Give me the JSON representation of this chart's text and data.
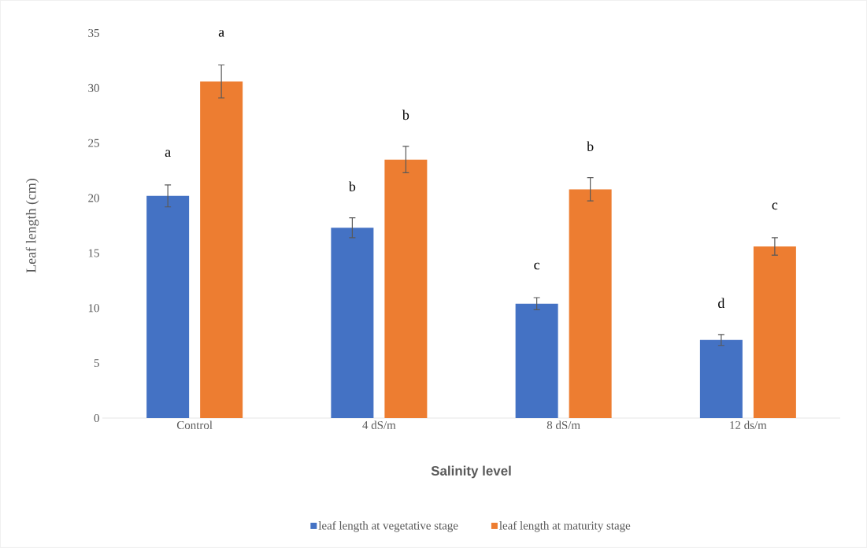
{
  "chart_data": {
    "type": "bar",
    "xlabel": "Salinity level",
    "ylabel": "Leaf length (cm)",
    "categories": [
      "Control",
      "4 dS/m",
      "8 dS/m",
      "12 ds/m"
    ],
    "series": [
      {
        "name": "leaf length at vegetative stage",
        "color": "#4472c4",
        "values": [
          20.2,
          17.3,
          10.4,
          7.1
        ],
        "errors": [
          1.0,
          0.9,
          0.55,
          0.5
        ]
      },
      {
        "name": "leaf length at maturity stage",
        "color": "#ed7d31",
        "values": [
          30.6,
          23.5,
          20.8,
          15.6
        ],
        "errors": [
          1.5,
          1.2,
          1.05,
          0.8
        ]
      }
    ],
    "ylim": [
      0,
      35
    ],
    "yticks": [
      0,
      5,
      10,
      15,
      20,
      25,
      30,
      35
    ],
    "legend": "bottom",
    "annotations": [
      "a",
      "a",
      "b",
      "b",
      "c",
      "b",
      "d",
      "c"
    ]
  }
}
